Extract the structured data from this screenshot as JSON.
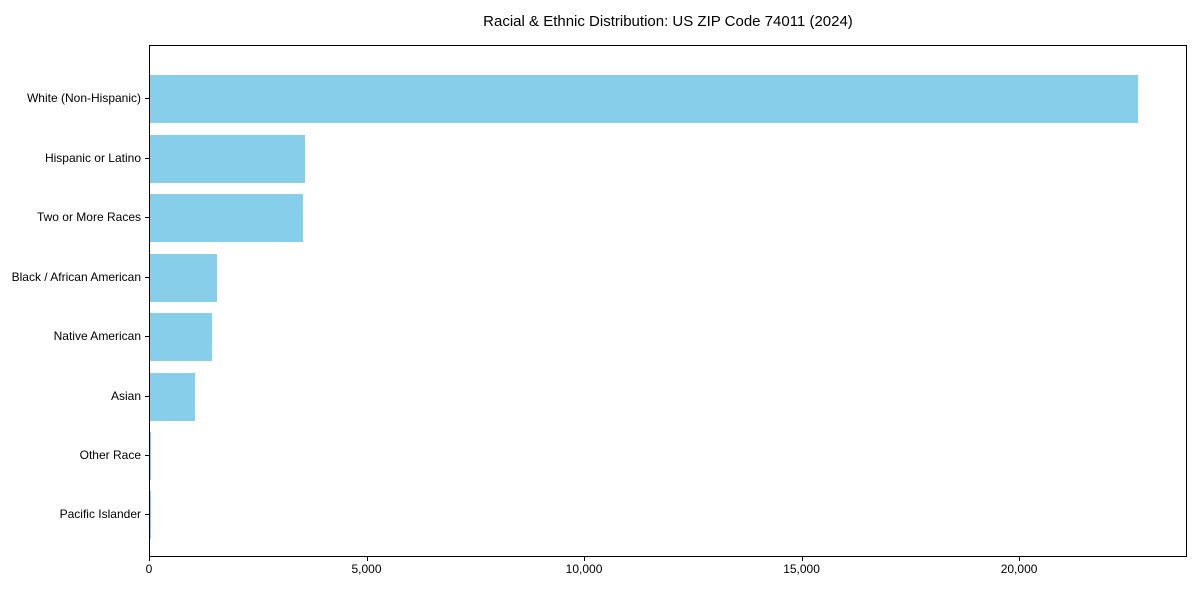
{
  "chart_data": {
    "type": "bar",
    "orientation": "horizontal",
    "title": "Racial & Ethnic Distribution: US ZIP Code 74011 (2024)",
    "categories": [
      "White (Non-Hispanic)",
      "Hispanic or Latino",
      "Two or More Races",
      "Black / African American",
      "Native American",
      "Asian",
      "Other Race",
      "Pacific Islander"
    ],
    "values": [
      22700,
      3560,
      3520,
      1540,
      1430,
      1030,
      30,
      10
    ],
    "xlabel": "",
    "ylabel": "",
    "xlim": [
      0,
      23860
    ],
    "xticks": [
      {
        "value": 0,
        "label": "0"
      },
      {
        "value": 5000,
        "label": "5,000"
      },
      {
        "value": 10000,
        "label": "10,000"
      },
      {
        "value": 15000,
        "label": "15,000"
      },
      {
        "value": 20000,
        "label": "20,000"
      }
    ],
    "bar_color": "#87CEEB",
    "grid": false,
    "legend": null
  }
}
